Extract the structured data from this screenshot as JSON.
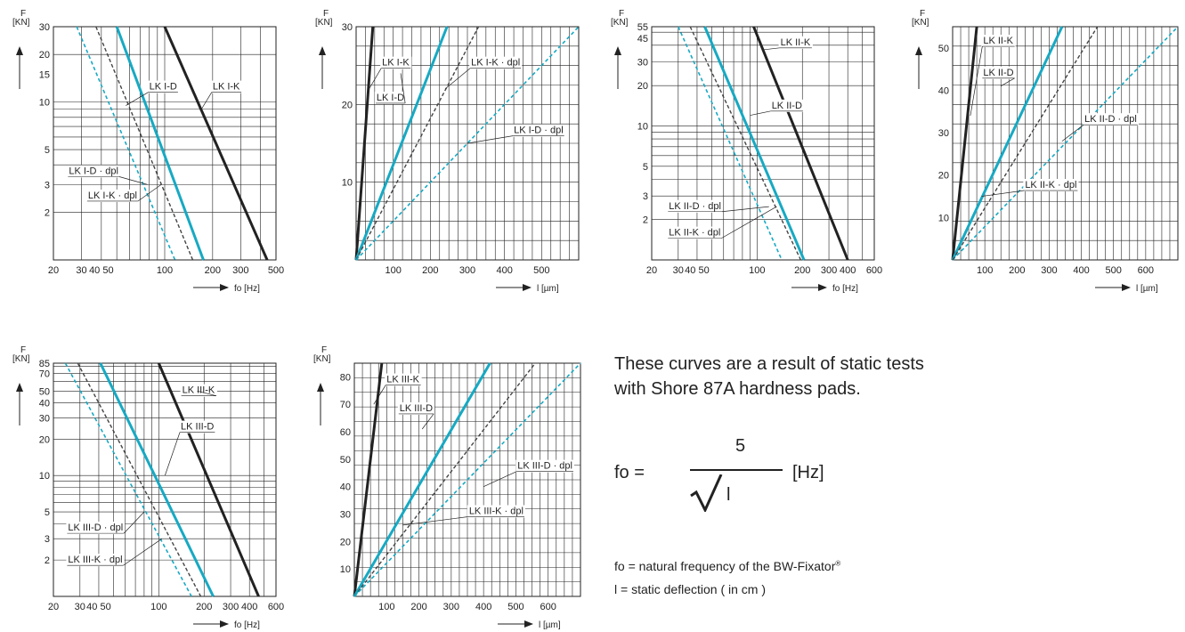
{
  "colors": {
    "K": "#222222",
    "D": "#17a9c3",
    "K_dpl": "#444444",
    "D_dpl": "#17a9c3"
  },
  "chart_data": [
    {
      "type": "line",
      "id": "c1",
      "xscale": "log",
      "yscale": "log",
      "x_range": [
        20,
        500
      ],
      "y_range": [
        1,
        30
      ],
      "ylabel": "F [KN]",
      "xlabel": "fo [Hz]",
      "x_ticks": [
        20,
        30,
        40,
        50,
        100,
        200,
        300,
        500
      ],
      "x_tick_labels": [
        "20",
        "30",
        "40 50",
        "",
        "100",
        "200",
        "300",
        "500"
      ],
      "y_ticks": [
        2,
        3,
        5,
        10,
        15,
        20,
        30
      ],
      "y_tick_labels": [
        "2",
        "3",
        "5",
        "10",
        "15",
        "20",
        "30"
      ],
      "series": [
        {
          "name": "LK I-K",
          "style": "K",
          "x": [
            100,
            440
          ],
          "y": [
            30,
            1
          ]
        },
        {
          "name": "LK I-D",
          "style": "D",
          "x": [
            50,
            175
          ],
          "y": [
            30,
            1
          ]
        },
        {
          "name": "LK I-K · dpl",
          "style": "K_dpl",
          "x": [
            37,
            150
          ],
          "y": [
            30,
            1
          ]
        },
        {
          "name": "LK I-D · dpl",
          "style": "D_dpl",
          "x": [
            28,
            116
          ],
          "y": [
            30,
            1
          ]
        }
      ],
      "labels": [
        {
          "text": "LK I-D",
          "x": 80,
          "y": 12,
          "ax": 57,
          "ay": 9.5
        },
        {
          "text": "LK I-K",
          "x": 200,
          "y": 12,
          "ax": 170,
          "ay": 9
        },
        {
          "text": "LK I-D · dpl",
          "x": 25,
          "y": 3.5,
          "ax": 78,
          "ay": 3
        },
        {
          "text": "LK I-K · dpl",
          "x": 33,
          "y": 2.45,
          "ax": 95,
          "ay": 3
        }
      ]
    },
    {
      "type": "line",
      "id": "c2",
      "xscale": "linear",
      "yscale": "linear",
      "x_range": [
        0,
        600
      ],
      "y_range": [
        0,
        30
      ],
      "ylabel": "F [KN]",
      "xlabel": "l [µm]",
      "x_ticks": [
        100,
        200,
        300,
        400,
        500
      ],
      "x_tick_labels": [
        "100",
        "200",
        "300",
        "400",
        "500"
      ],
      "y_ticks": [
        10,
        20,
        30
      ],
      "y_tick_labels": [
        "10",
        "20",
        "30"
      ],
      "series": [
        {
          "name": "LK I-K",
          "style": "K",
          "x": [
            0,
            45
          ],
          "y": [
            0,
            30
          ]
        },
        {
          "name": "LK I-D",
          "style": "D",
          "x": [
            0,
            245
          ],
          "y": [
            0,
            30
          ]
        },
        {
          "name": "LK I-K · dpl",
          "style": "K_dpl",
          "x": [
            0,
            330
          ],
          "y": [
            0,
            30
          ]
        },
        {
          "name": "LK I-D · dpl",
          "style": "D_dpl",
          "x": [
            0,
            600
          ],
          "y": [
            0,
            30
          ]
        }
      ],
      "labels": [
        {
          "text": "LK I-K",
          "x": 70,
          "y": 25,
          "ax": 35,
          "ay": 22
        },
        {
          "text": "LK I-D",
          "x": 55,
          "y": 20.5,
          "ax": 120,
          "ay": 24
        },
        {
          "text": "LK I-K · dpl",
          "x": 310,
          "y": 25,
          "ax": 240,
          "ay": 22
        },
        {
          "text": "LK I-D · dpl",
          "x": 425,
          "y": 16.3,
          "ax": 300,
          "ay": 15
        }
      ]
    },
    {
      "type": "line",
      "id": "c3",
      "xscale": "log",
      "yscale": "log",
      "x_range": [
        20,
        600
      ],
      "y_range": [
        1,
        55
      ],
      "ylabel": "F [KN]",
      "xlabel": "fo [Hz]",
      "x_ticks": [
        20,
        30,
        40,
        50,
        100,
        200,
        300,
        400,
        600
      ],
      "x_tick_labels": [
        "20",
        "30",
        "40 50",
        "",
        "100",
        "200",
        "300",
        "400",
        "600"
      ],
      "y_ticks": [
        2,
        3,
        5,
        10,
        20,
        30,
        45,
        55
      ],
      "y_tick_labels": [
        "2",
        "3",
        "5",
        "10",
        "20",
        "30",
        "45",
        "55"
      ],
      "series": [
        {
          "name": "LK II-K",
          "style": "K",
          "x": [
            95,
            400
          ],
          "y": [
            55,
            1
          ]
        },
        {
          "name": "LK II-D",
          "style": "D",
          "x": [
            45,
            205
          ],
          "y": [
            55,
            1
          ]
        },
        {
          "name": "LK II-K · dpl",
          "style": "K_dpl",
          "x": [
            36,
            195
          ],
          "y": [
            55,
            1
          ]
        },
        {
          "name": "LK II-D · dpl",
          "style": "D_dpl",
          "x": [
            30,
            146
          ],
          "y": [
            55,
            1
          ]
        }
      ],
      "labels": [
        {
          "text": "LK II-K",
          "x": 143,
          "y": 40,
          "ax": 110,
          "ay": 37
        },
        {
          "text": "LK II-D",
          "x": 125,
          "y": 13.5,
          "ax": 90,
          "ay": 12
        },
        {
          "text": "LK II-D · dpl",
          "x": 26,
          "y": 2.4,
          "ax": 120,
          "ay": 2.5
        },
        {
          "text": "LK II-K · dpl",
          "x": 26,
          "y": 1.52,
          "ax": 135,
          "ay": 2.5
        }
      ]
    },
    {
      "type": "line",
      "id": "c4",
      "xscale": "linear",
      "yscale": "linear",
      "x_range": [
        0,
        700
      ],
      "y_range": [
        0,
        55
      ],
      "ylabel": "F [KN]",
      "xlabel": "l [µm]",
      "x_ticks": [
        100,
        200,
        300,
        400,
        500,
        600
      ],
      "x_tick_labels": [
        "100",
        "200",
        "300",
        "400",
        "500",
        "600"
      ],
      "y_ticks": [
        10,
        20,
        30,
        40,
        50
      ],
      "y_tick_labels": [
        "10",
        "20",
        "30",
        "40",
        "50"
      ],
      "series": [
        {
          "name": "LK II-K",
          "style": "K",
          "x": [
            0,
            75
          ],
          "y": [
            0,
            55
          ]
        },
        {
          "name": "LK II-D",
          "style": "D",
          "x": [
            0,
            340
          ],
          "y": [
            0,
            55
          ]
        },
        {
          "name": "LK II-D · dpl",
          "style": "D_dpl",
          "x": [
            0,
            700
          ],
          "y": [
            0,
            55
          ]
        },
        {
          "name": "LK II-K · dpl",
          "style": "K_dpl",
          "x": [
            0,
            450
          ],
          "y": [
            0,
            55
          ]
        }
      ],
      "labels": [
        {
          "text": "LK II-K",
          "x": 95,
          "y": 51,
          "ax": 55,
          "ay": 34
        },
        {
          "text": "LK II-D",
          "x": 95,
          "y": 43.5,
          "ax": 150,
          "ay": 41
        },
        {
          "text": "LK II-D · dpl",
          "x": 410,
          "y": 32.5,
          "ax": 340,
          "ay": 28
        },
        {
          "text": "LK II-K · dpl",
          "x": 225,
          "y": 17,
          "ax": 90,
          "ay": 15
        }
      ]
    },
    {
      "type": "line",
      "id": "c5",
      "xscale": "log",
      "yscale": "log",
      "x_range": [
        20,
        600
      ],
      "y_range": [
        1,
        85
      ],
      "ylabel": "F [KN]",
      "xlabel": "fo [Hz]",
      "x_ticks": [
        20,
        30,
        40,
        50,
        100,
        200,
        300,
        400,
        600
      ],
      "x_tick_labels": [
        "20",
        "30",
        "40 50",
        "",
        "100",
        "200",
        "300",
        "400",
        "600"
      ],
      "y_ticks": [
        2,
        3,
        5,
        10,
        20,
        30,
        40,
        50,
        70,
        85
      ],
      "y_tick_labels": [
        "2",
        "3",
        "5",
        "10",
        "20",
        "30",
        "40",
        "50",
        "70",
        "85"
      ],
      "series": [
        {
          "name": "LK III-K",
          "style": "K",
          "x": [
            100,
            460
          ],
          "y": [
            85,
            1
          ]
        },
        {
          "name": "LK III-D",
          "style": "D",
          "x": [
            41,
            230
          ],
          "y": [
            85,
            1
          ]
        },
        {
          "name": "LK III-K · dpl",
          "style": "K_dpl",
          "x": [
            29,
            190
          ],
          "y": [
            85,
            1
          ]
        },
        {
          "name": "LK III-D · dpl",
          "style": "D_dpl",
          "x": [
            24,
            165
          ],
          "y": [
            85,
            1
          ]
        }
      ],
      "labels": [
        {
          "text": "LK III-K",
          "x": 143,
          "y": 48,
          "ax": 180,
          "ay": 50
        },
        {
          "text": "LK III-D",
          "x": 140,
          "y": 24,
          "ax": 110,
          "ay": 10
        },
        {
          "text": "LK III-D · dpl",
          "x": 25,
          "y": 3.5,
          "ax": 80,
          "ay": 5
        },
        {
          "text": "LK III-K · dpl",
          "x": 25,
          "y": 1.9,
          "ax": 105,
          "ay": 3
        }
      ]
    },
    {
      "type": "line",
      "id": "c6",
      "xscale": "linear",
      "yscale": "linear",
      "x_range": [
        0,
        700
      ],
      "y_range": [
        0,
        85
      ],
      "ylabel": "F [KN]",
      "xlabel": "l [µm]",
      "x_ticks": [
        100,
        200,
        300,
        400,
        500,
        600
      ],
      "x_tick_labels": [
        "100",
        "200",
        "300",
        "400",
        "500",
        "600"
      ],
      "y_ticks": [
        10,
        20,
        30,
        40,
        50,
        60,
        70,
        80
      ],
      "y_tick_labels": [
        "10",
        "20",
        "30",
        "40",
        "50",
        "60",
        "70",
        "80"
      ],
      "series": [
        {
          "name": "LK III-K",
          "style": "K",
          "x": [
            0,
            85
          ],
          "y": [
            0,
            85
          ]
        },
        {
          "name": "LK III-D",
          "style": "D",
          "x": [
            0,
            420
          ],
          "y": [
            0,
            85
          ]
        },
        {
          "name": "LK III-K · dpl",
          "style": "K_dpl",
          "x": [
            0,
            560
          ],
          "y": [
            0,
            85
          ]
        },
        {
          "name": "LK III-D · dpl",
          "style": "D_dpl",
          "x": [
            0,
            700
          ],
          "y": [
            0,
            85
          ]
        }
      ],
      "labels": [
        {
          "text": "LK III-K",
          "x": 100,
          "y": 78,
          "ax": 60,
          "ay": 70
        },
        {
          "text": "LK III-D",
          "x": 140,
          "y": 67.5,
          "ax": 210,
          "ay": 61
        },
        {
          "text": "LK III-D · dpl",
          "x": 505,
          "y": 46.5,
          "ax": 400,
          "ay": 40
        },
        {
          "text": "LK III-K · dpl",
          "x": 355,
          "y": 30,
          "ax": 150,
          "ay": 26
        }
      ]
    }
  ],
  "text": {
    "note": "These curves are a result of static tests with Shore 87A hardness pads.",
    "formula": {
      "lhs": "fo  =",
      "numerator": "5",
      "variable": "l",
      "unit": "[Hz]"
    },
    "def_fo": "fo = natural frequency of the BW-Fixator",
    "reg_mark": "®",
    "def_l": "l  = static deflection ( in cm )"
  }
}
